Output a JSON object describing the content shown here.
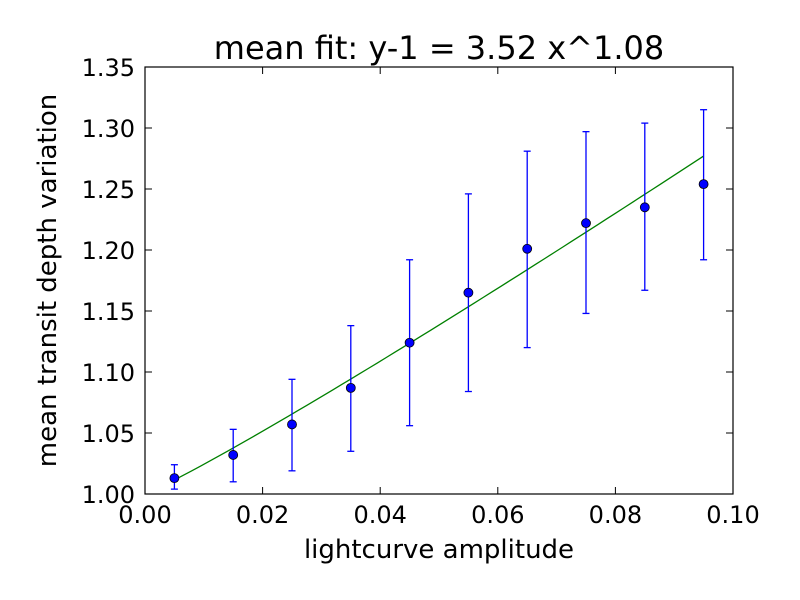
{
  "chart_data": {
    "type": "scatter",
    "title": "mean fit: y-1 = 3.52 x^1.08",
    "xlabel": "lightcurve amplitude",
    "ylabel": "mean transit depth variation",
    "xlim": [
      0.0,
      0.1
    ],
    "ylim": [
      1.0,
      1.35
    ],
    "xticks": [
      "0.00",
      "0.02",
      "0.04",
      "0.06",
      "0.08",
      "0.10"
    ],
    "yticks": [
      "1.00",
      "1.05",
      "1.10",
      "1.15",
      "1.20",
      "1.25",
      "1.30",
      "1.35"
    ],
    "grid": false,
    "points": {
      "color": "#0000ff",
      "x": [
        0.005,
        0.015,
        0.025,
        0.035,
        0.045,
        0.055,
        0.065,
        0.075,
        0.085,
        0.095
      ],
      "y": [
        1.013,
        1.032,
        1.057,
        1.087,
        1.124,
        1.165,
        1.201,
        1.222,
        1.235,
        1.254
      ],
      "y_low": [
        1.004,
        1.01,
        1.019,
        1.035,
        1.056,
        1.084,
        1.12,
        1.148,
        1.167,
        1.192
      ],
      "y_high": [
        1.024,
        1.053,
        1.094,
        1.138,
        1.192,
        1.246,
        1.281,
        1.297,
        1.304,
        1.315
      ]
    },
    "fit": {
      "color": "#008000",
      "coefficient": 3.52,
      "exponent": 1.08,
      "x_range": [
        0.005,
        0.095
      ]
    }
  }
}
